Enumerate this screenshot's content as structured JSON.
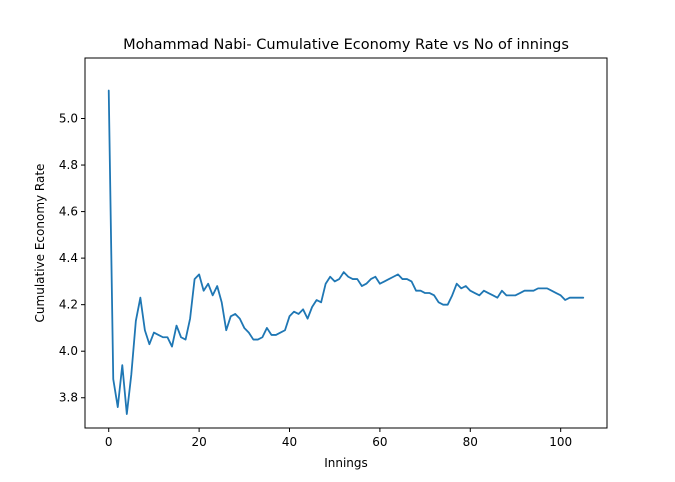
{
  "chart_data": {
    "type": "line",
    "title": "Mohammad Nabi- Cumulative Economy Rate vs No of innings",
    "xlabel": "Innings",
    "ylabel": "Cumulative Economy Rate",
    "xlim": [
      -5.25,
      110.25
    ],
    "ylim": [
      3.67,
      5.26
    ],
    "xticks": [
      0,
      20,
      40,
      60,
      80,
      100
    ],
    "yticks": [
      3.8,
      4.0,
      4.2,
      4.4,
      4.6,
      4.8,
      5.0
    ],
    "ytick_labels": [
      "3.8",
      "4.0",
      "4.2",
      "4.4",
      "4.6",
      "4.8",
      "5.0"
    ],
    "grid": false,
    "legend": "none",
    "series": [
      {
        "color": "#1f77b4",
        "x": [
          0,
          1,
          2,
          3,
          4,
          5,
          6,
          7,
          8,
          9,
          10,
          11,
          12,
          13,
          14,
          15,
          16,
          17,
          18,
          19,
          20,
          21,
          22,
          23,
          24,
          25,
          26,
          27,
          28,
          29,
          30,
          31,
          32,
          33,
          34,
          35,
          36,
          37,
          38,
          39,
          40,
          41,
          42,
          43,
          44,
          45,
          46,
          47,
          48,
          49,
          50,
          51,
          52,
          53,
          54,
          55,
          56,
          57,
          58,
          59,
          60,
          61,
          62,
          63,
          64,
          65,
          66,
          67,
          68,
          69,
          70,
          71,
          72,
          73,
          74,
          75,
          76,
          77,
          78,
          79,
          80,
          81,
          82,
          83,
          84,
          85,
          86,
          87,
          88,
          89,
          90,
          91,
          92,
          93,
          94,
          95,
          96,
          97,
          98,
          99,
          100,
          101,
          102,
          103,
          104,
          105
        ],
        "y": [
          5.12,
          3.88,
          3.76,
          3.94,
          3.73,
          3.9,
          4.13,
          4.23,
          4.09,
          4.03,
          4.08,
          4.07,
          4.06,
          4.06,
          4.02,
          4.11,
          4.06,
          4.05,
          4.14,
          4.31,
          4.33,
          4.26,
          4.29,
          4.24,
          4.28,
          4.21,
          4.09,
          4.15,
          4.16,
          4.14,
          4.1,
          4.08,
          4.05,
          4.05,
          4.06,
          4.1,
          4.07,
          4.07,
          4.08,
          4.09,
          4.15,
          4.17,
          4.16,
          4.18,
          4.14,
          4.19,
          4.22,
          4.21,
          4.29,
          4.32,
          4.3,
          4.31,
          4.34,
          4.32,
          4.31,
          4.31,
          4.28,
          4.29,
          4.31,
          4.32,
          4.29,
          4.3,
          4.31,
          4.32,
          4.33,
          4.31,
          4.31,
          4.3,
          4.26,
          4.26,
          4.25,
          4.25,
          4.24,
          4.21,
          4.2,
          4.2,
          4.24,
          4.29,
          4.27,
          4.28,
          4.26,
          4.25,
          4.24,
          4.26,
          4.25,
          4.24,
          4.23,
          4.26,
          4.24,
          4.24,
          4.24,
          4.25,
          4.26,
          4.26,
          4.26,
          4.27,
          4.27,
          4.27,
          4.26,
          4.25,
          4.24,
          4.22,
          4.23,
          4.23,
          4.23,
          4.23
        ]
      }
    ]
  }
}
